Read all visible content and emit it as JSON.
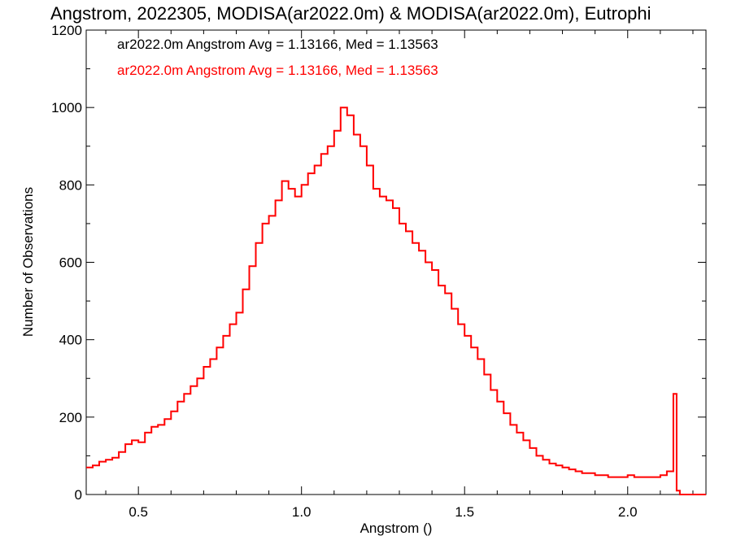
{
  "chart_data": {
    "type": "line",
    "title": "Angstrom, 2022305, MODISA(ar2022.0m) & MODISA(ar2022.0m), Eutrophi",
    "xlabel": "Angstrom ()",
    "ylabel": "Number of Observations",
    "xlim": [
      0.34,
      2.24
    ],
    "ylim": [
      0,
      1200
    ],
    "x_ticks": [
      0.5,
      1.0,
      1.5,
      2.0
    ],
    "x_tick_labels": [
      "0.5",
      "1.0",
      "1.5",
      "2.0"
    ],
    "y_ticks": [
      0,
      200,
      400,
      600,
      800,
      1000,
      1200
    ],
    "y_tick_labels": [
      "0",
      "200",
      "400",
      "600",
      "800",
      "1000",
      "1200"
    ],
    "legend": [
      {
        "text": "ar2022.0m Angstrom Avg = 1.13166, Med = 1.13563",
        "color": "#000000"
      },
      {
        "text": "ar2022.0m Angstrom Avg = 1.13166, Med = 1.13563",
        "color": "#ff0000"
      }
    ],
    "series": [
      {
        "color": "#ff0000",
        "step": "histogram",
        "x": [
          0.34,
          0.36,
          0.38,
          0.4,
          0.42,
          0.44,
          0.46,
          0.48,
          0.5,
          0.52,
          0.54,
          0.56,
          0.58,
          0.6,
          0.62,
          0.64,
          0.66,
          0.68,
          0.7,
          0.72,
          0.74,
          0.76,
          0.78,
          0.8,
          0.82,
          0.84,
          0.86,
          0.88,
          0.9,
          0.92,
          0.94,
          0.96,
          0.98,
          1.0,
          1.02,
          1.04,
          1.06,
          1.08,
          1.1,
          1.12,
          1.14,
          1.16,
          1.18,
          1.2,
          1.22,
          1.24,
          1.26,
          1.28,
          1.3,
          1.32,
          1.34,
          1.36,
          1.38,
          1.4,
          1.42,
          1.44,
          1.46,
          1.48,
          1.5,
          1.52,
          1.54,
          1.56,
          1.58,
          1.6,
          1.62,
          1.64,
          1.66,
          1.68,
          1.7,
          1.72,
          1.74,
          1.76,
          1.78,
          1.8,
          1.82,
          1.84,
          1.86,
          1.88,
          1.9,
          1.92,
          1.94,
          1.96,
          1.98,
          2.0,
          2.02,
          2.04,
          2.06,
          2.08,
          2.1,
          2.12,
          2.14,
          2.15,
          2.16,
          2.18,
          2.2,
          2.22
        ],
        "y": [
          70,
          75,
          85,
          90,
          95,
          110,
          130,
          140,
          135,
          160,
          175,
          180,
          195,
          215,
          240,
          260,
          280,
          300,
          330,
          350,
          380,
          410,
          440,
          470,
          530,
          590,
          650,
          700,
          720,
          760,
          810,
          790,
          770,
          800,
          830,
          850,
          880,
          900,
          940,
          1000,
          980,
          930,
          900,
          850,
          790,
          770,
          760,
          740,
          700,
          680,
          650,
          630,
          600,
          580,
          540,
          520,
          480,
          440,
          410,
          380,
          350,
          310,
          270,
          240,
          210,
          180,
          160,
          140,
          120,
          100,
          90,
          80,
          75,
          70,
          65,
          60,
          55,
          55,
          50,
          50,
          45,
          45,
          45,
          50,
          45,
          45,
          45,
          45,
          50,
          60,
          260,
          10,
          0,
          0,
          0,
          0
        ]
      }
    ]
  }
}
